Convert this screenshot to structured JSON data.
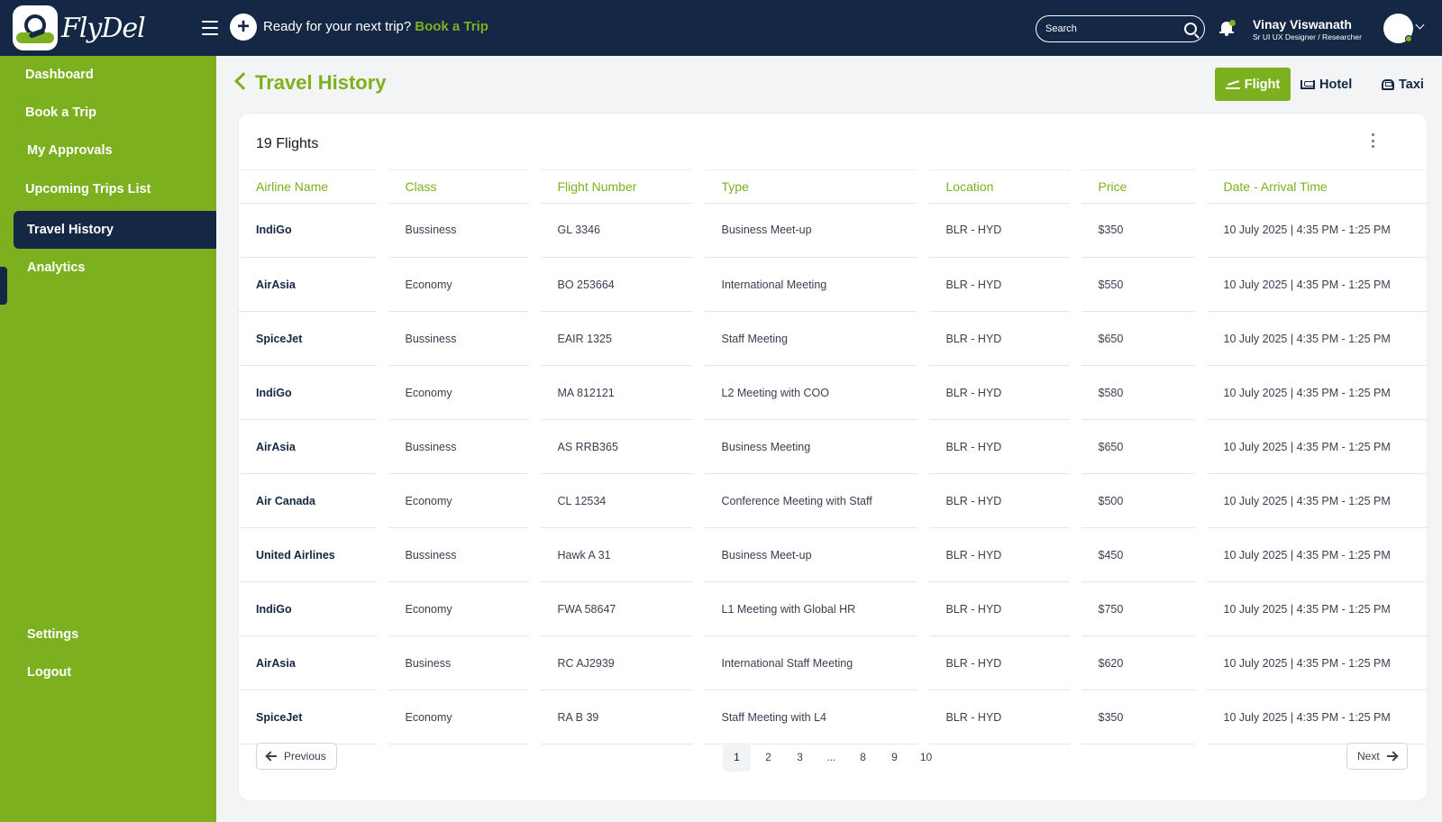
{
  "app": {
    "brand": "FlyDel"
  },
  "header": {
    "promo_text": "Ready for your next trip?",
    "promo_link": "Book a Trip",
    "search_placeholder": "Search",
    "user_name": "Vinay Viswanath",
    "user_role": "Sr UI UX Designer / Researcher"
  },
  "sidebar": {
    "items": [
      {
        "label": "Dashboard"
      },
      {
        "label": "Book a Trip"
      },
      {
        "label": "My Approvals"
      },
      {
        "label": "Upcoming Trips List"
      },
      {
        "label": "Travel History",
        "active": true
      },
      {
        "label": "Analytics"
      }
    ],
    "bottom": [
      {
        "label": "Settings"
      },
      {
        "label": "Logout"
      }
    ]
  },
  "page": {
    "title": "Travel History",
    "modes": {
      "flight": "Flight",
      "hotel": "Hotel",
      "taxi": "Taxi"
    },
    "card_title": "19 Flights"
  },
  "table": {
    "columns": [
      "Airline Name",
      "Class",
      "Flight Number",
      "Type",
      "Location",
      "Price",
      "Date - Arrival Time"
    ],
    "rows": [
      [
        "IndiGo",
        "Bussiness",
        "GL 3346",
        "Business Meet-up",
        "BLR - HYD",
        "$350",
        "10 July 2025 | 4:35 PM - 1:25 PM"
      ],
      [
        "AirAsia",
        "Economy",
        "BO 253664",
        "International Meeting",
        "BLR - HYD",
        "$550",
        "10 July 2025 | 4:35 PM - 1:25 PM"
      ],
      [
        "SpiceJet",
        "Bussiness",
        "EAIR 1325",
        "Staff Meeting",
        "BLR - HYD",
        "$650",
        "10 July 2025 | 4:35 PM - 1:25 PM"
      ],
      [
        "IndiGo",
        "Economy",
        "MA 812121",
        "L2 Meeting with COO",
        "BLR - HYD",
        "$580",
        "10 July 2025 | 4:35 PM - 1:25 PM"
      ],
      [
        "AirAsia",
        "Bussiness",
        "AS RRB365",
        "Business Meeting",
        "BLR - HYD",
        "$650",
        "10 July 2025 | 4:35 PM - 1:25 PM"
      ],
      [
        "Air Canada",
        "Economy",
        "CL 12534",
        "Conference Meeting with Staff",
        "BLR - HYD",
        "$500",
        "10 July 2025 | 4:35 PM - 1:25 PM"
      ],
      [
        "United Airlines",
        "Bussiness",
        "Hawk A 31",
        "Business Meet-up",
        "BLR - HYD",
        "$450",
        "10 July 2025 | 4:35 PM - 1:25 PM"
      ],
      [
        "IndiGo",
        "Economy",
        "FWA 58647",
        "L1 Meeting with Global HR",
        "BLR - HYD",
        "$750",
        "10 July 2025 | 4:35 PM - 1:25 PM"
      ],
      [
        "AirAsia",
        "Business",
        "RC AJ2939",
        "International Staff Meeting",
        "BLR - HYD",
        "$620",
        "10 July 2025 | 4:35 PM - 1:25 PM"
      ],
      [
        "SpiceJet",
        "Economy",
        "RA B 39",
        "Staff Meeting with L4",
        "BLR - HYD",
        "$350",
        "10 July 2025 | 4:35 PM - 1:25 PM"
      ]
    ]
  },
  "pagination": {
    "previous": "Previous",
    "next": "Next",
    "pages": [
      "1",
      "2",
      "3",
      "...",
      "8",
      "9",
      "10"
    ],
    "current": "1"
  },
  "colors": {
    "navy": "#142744",
    "green": "#7cb01f"
  }
}
